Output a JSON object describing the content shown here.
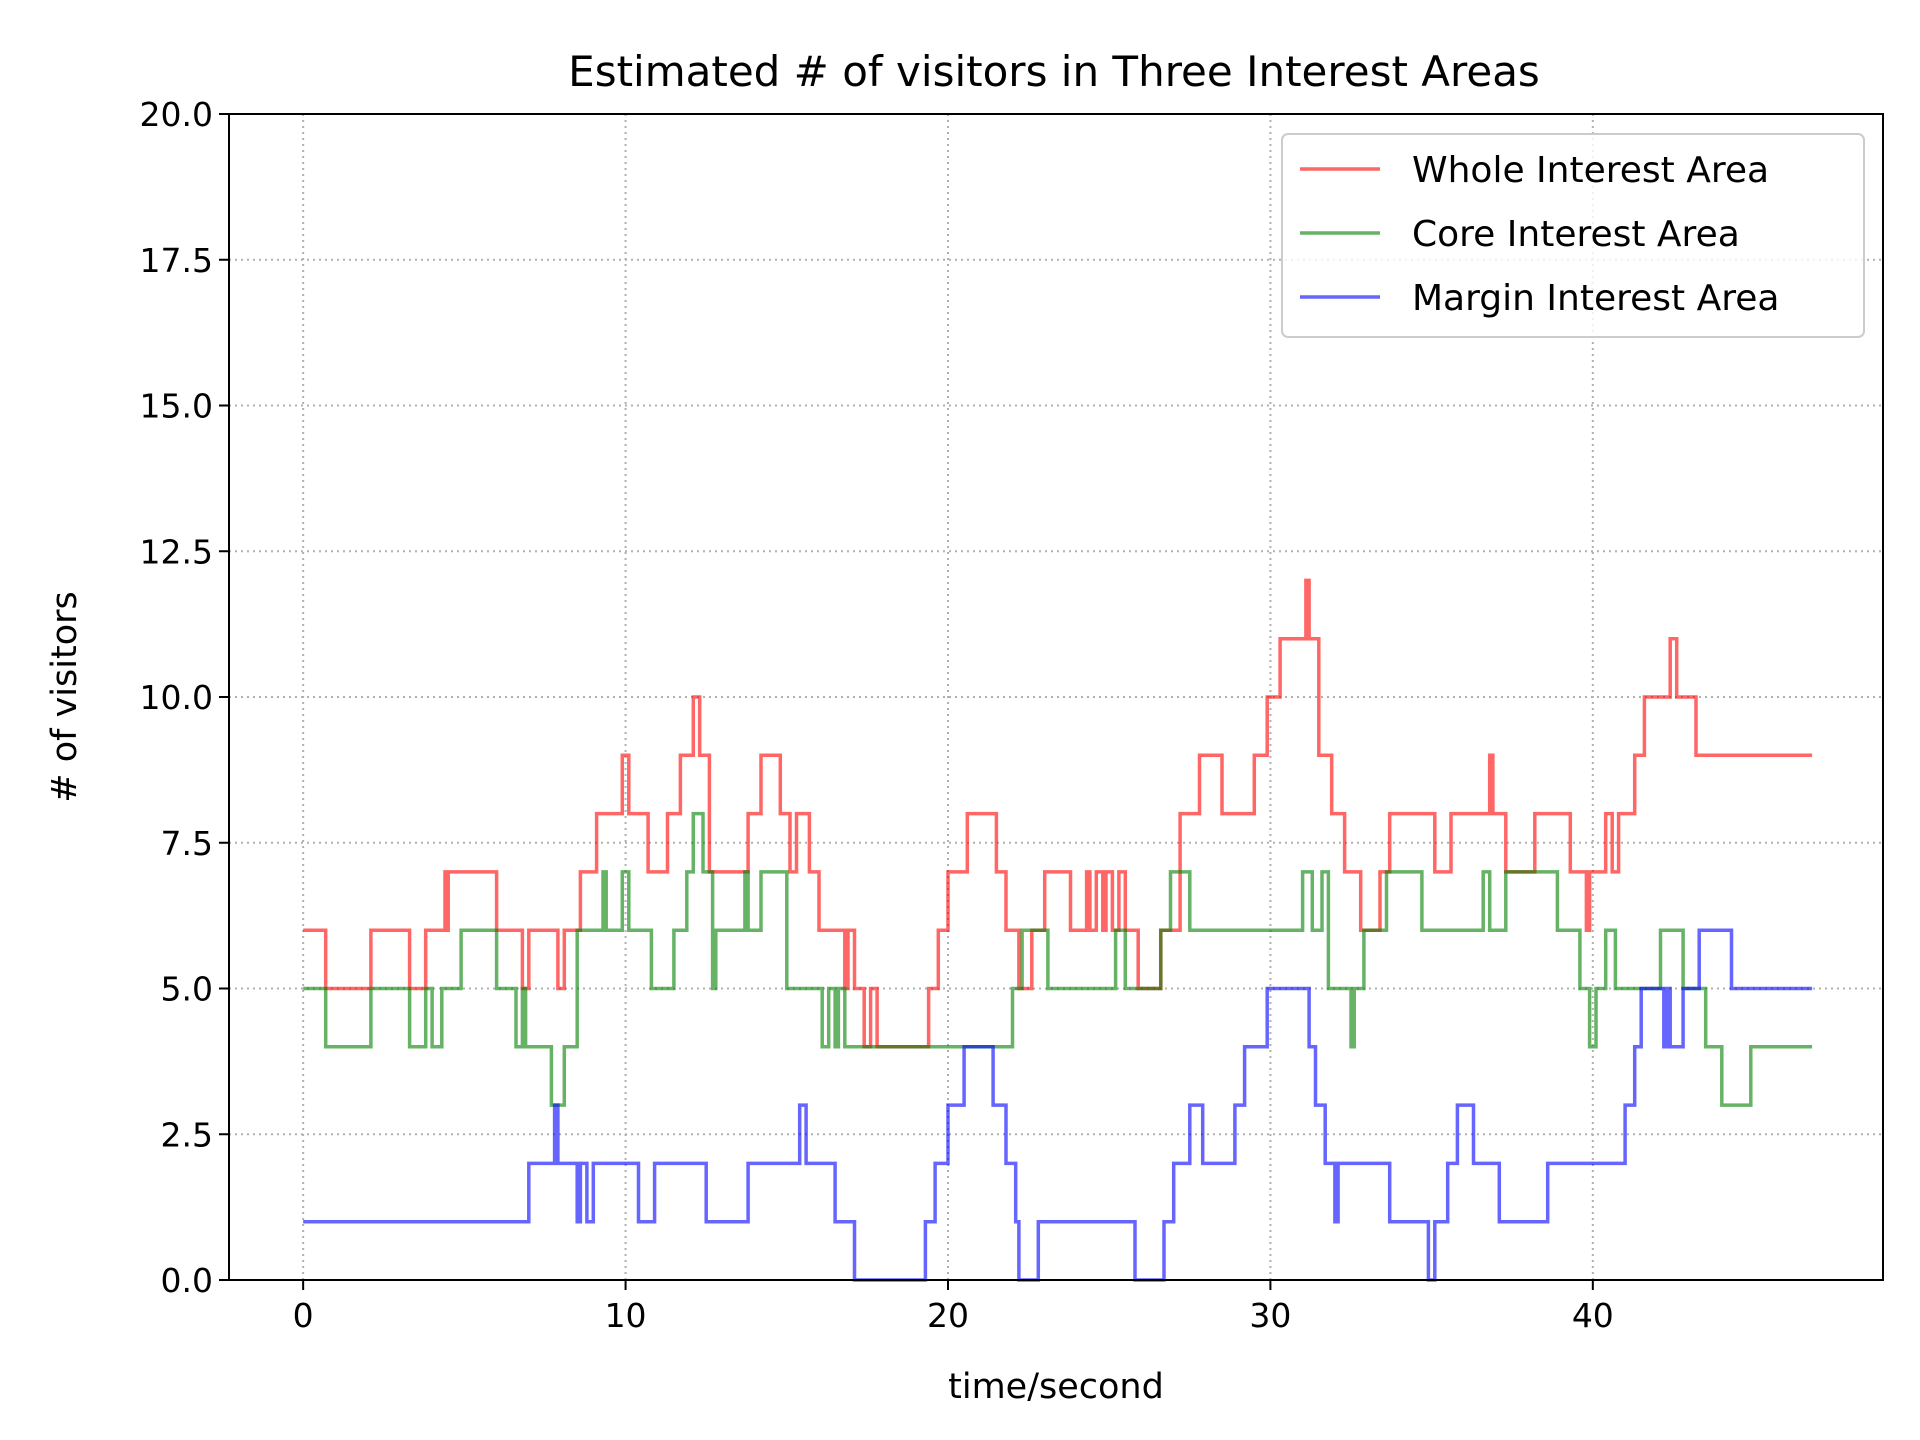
{
  "chart_data": {
    "type": "line",
    "title": "Estimated # of visitors in Three Interest Areas",
    "xlabel": "time/second",
    "ylabel": "# of visitors",
    "xlim": [
      -2.3,
      49.0
    ],
    "ylim": [
      0,
      20
    ],
    "x_ticks": [
      0,
      10,
      20,
      30,
      40
    ],
    "x_tick_labels": [
      "0",
      "10",
      "20",
      "30",
      "40"
    ],
    "y_ticks": [
      0,
      2.5,
      5,
      7.5,
      10,
      12.5,
      15,
      17.5,
      20
    ],
    "y_tick_labels": [
      "0.0",
      "2.5",
      "5.0",
      "7.5",
      "10.0",
      "12.5",
      "15.0",
      "17.5",
      "20.0"
    ],
    "grid": true,
    "legend_position": "top-right",
    "step": true,
    "series": [
      {
        "name": "Whole Interest Area",
        "color": "#ff0000",
        "points": [
          [
            0,
            6
          ],
          [
            0.7,
            5
          ],
          [
            2.1,
            6
          ],
          [
            3.3,
            5
          ],
          [
            3.8,
            6
          ],
          [
            4.4,
            7
          ],
          [
            4.45,
            6
          ],
          [
            4.5,
            7
          ],
          [
            6.0,
            6
          ],
          [
            6.8,
            5
          ],
          [
            7.0,
            6
          ],
          [
            7.9,
            5
          ],
          [
            8.1,
            6
          ],
          [
            8.6,
            7
          ],
          [
            9.1,
            8
          ],
          [
            9.9,
            9
          ],
          [
            10.1,
            8
          ],
          [
            10.7,
            7
          ],
          [
            11.3,
            8
          ],
          [
            11.7,
            9
          ],
          [
            12.1,
            10
          ],
          [
            12.3,
            9
          ],
          [
            12.6,
            7
          ],
          [
            13.1,
            7
          ],
          [
            13.8,
            8
          ],
          [
            14.2,
            9
          ],
          [
            14.8,
            8
          ],
          [
            15.1,
            7
          ],
          [
            15.3,
            8
          ],
          [
            15.7,
            7
          ],
          [
            16.0,
            6
          ],
          [
            16.8,
            5
          ],
          [
            16.9,
            6
          ],
          [
            17.1,
            5
          ],
          [
            17.4,
            4
          ],
          [
            17.6,
            5
          ],
          [
            17.8,
            4
          ],
          [
            19.4,
            5
          ],
          [
            19.7,
            6
          ],
          [
            20.0,
            7
          ],
          [
            20.6,
            8
          ],
          [
            21.5,
            7
          ],
          [
            21.8,
            6
          ],
          [
            22.2,
            5
          ],
          [
            22.6,
            6
          ],
          [
            23.0,
            7
          ],
          [
            23.8,
            6
          ],
          [
            24.3,
            7
          ],
          [
            24.4,
            6
          ],
          [
            24.6,
            7
          ],
          [
            24.8,
            6
          ],
          [
            24.9,
            7
          ],
          [
            25.1,
            6
          ],
          [
            25.3,
            7
          ],
          [
            25.5,
            6
          ],
          [
            25.9,
            5
          ],
          [
            26.6,
            6
          ],
          [
            27.2,
            8
          ],
          [
            27.8,
            9
          ],
          [
            28.5,
            8
          ],
          [
            29.5,
            9
          ],
          [
            29.9,
            10
          ],
          [
            30.3,
            11
          ],
          [
            31.1,
            12
          ],
          [
            31.2,
            11
          ],
          [
            31.5,
            9
          ],
          [
            31.9,
            8
          ],
          [
            32.3,
            7
          ],
          [
            32.8,
            6
          ],
          [
            33.4,
            7
          ],
          [
            33.7,
            8
          ],
          [
            35.1,
            7
          ],
          [
            35.6,
            8
          ],
          [
            36.8,
            9
          ],
          [
            36.9,
            8
          ],
          [
            37.3,
            7
          ],
          [
            38.2,
            8
          ],
          [
            38.8,
            8
          ],
          [
            39.3,
            7
          ],
          [
            39.8,
            6
          ],
          [
            39.9,
            7
          ],
          [
            40.4,
            8
          ],
          [
            40.6,
            7
          ],
          [
            40.8,
            8
          ],
          [
            41.3,
            9
          ],
          [
            41.6,
            10
          ],
          [
            42.4,
            11
          ],
          [
            42.6,
            10
          ],
          [
            43.2,
            9
          ],
          [
            46.8,
            9
          ]
        ]
      },
      {
        "name": "Core Interest Area",
        "color": "#008000",
        "points": [
          [
            0,
            5
          ],
          [
            0.7,
            4
          ],
          [
            2.1,
            5
          ],
          [
            3.3,
            4
          ],
          [
            3.8,
            5
          ],
          [
            4.0,
            4
          ],
          [
            4.3,
            5
          ],
          [
            4.9,
            6
          ],
          [
            6.0,
            5
          ],
          [
            6.6,
            4
          ],
          [
            6.8,
            5
          ],
          [
            6.9,
            4
          ],
          [
            7.7,
            3
          ],
          [
            8.1,
            4
          ],
          [
            8.5,
            6
          ],
          [
            9.3,
            7
          ],
          [
            9.4,
            6
          ],
          [
            9.9,
            7
          ],
          [
            10.1,
            6
          ],
          [
            10.8,
            5
          ],
          [
            11.5,
            6
          ],
          [
            11.9,
            7
          ],
          [
            12.1,
            8
          ],
          [
            12.4,
            7
          ],
          [
            12.7,
            5
          ],
          [
            12.8,
            6
          ],
          [
            13.7,
            7
          ],
          [
            13.8,
            6
          ],
          [
            14.2,
            7
          ],
          [
            15.0,
            5
          ],
          [
            16.1,
            4
          ],
          [
            16.3,
            5
          ],
          [
            16.5,
            4
          ],
          [
            16.6,
            5
          ],
          [
            16.8,
            4
          ],
          [
            19.2,
            4
          ],
          [
            22.0,
            5
          ],
          [
            22.3,
            6
          ],
          [
            23.1,
            5
          ],
          [
            25.2,
            6
          ],
          [
            25.5,
            5
          ],
          [
            26.6,
            6
          ],
          [
            26.9,
            7
          ],
          [
            27.5,
            6
          ],
          [
            31.0,
            7
          ],
          [
            31.3,
            6
          ],
          [
            31.6,
            7
          ],
          [
            31.8,
            5
          ],
          [
            32.5,
            4
          ],
          [
            32.6,
            5
          ],
          [
            32.9,
            6
          ],
          [
            33.6,
            7
          ],
          [
            34.7,
            6
          ],
          [
            36.6,
            7
          ],
          [
            36.8,
            6
          ],
          [
            37.3,
            7
          ],
          [
            38.9,
            6
          ],
          [
            39.6,
            5
          ],
          [
            39.9,
            4
          ],
          [
            40.1,
            5
          ],
          [
            40.4,
            6
          ],
          [
            40.7,
            5
          ],
          [
            42.1,
            6
          ],
          [
            42.8,
            5
          ],
          [
            43.5,
            4
          ],
          [
            44.0,
            3
          ],
          [
            44.9,
            4
          ],
          [
            46.8,
            4
          ]
        ]
      },
      {
        "name": "Margin Interest Area",
        "color": "#0000ff",
        "points": [
          [
            0,
            1
          ],
          [
            7.0,
            2
          ],
          [
            7.8,
            3
          ],
          [
            7.9,
            2
          ],
          [
            8.3,
            2
          ],
          [
            8.5,
            1
          ],
          [
            8.6,
            2
          ],
          [
            8.8,
            1
          ],
          [
            9.0,
            2
          ],
          [
            10.4,
            1
          ],
          [
            10.9,
            2
          ],
          [
            12.5,
            1
          ],
          [
            13.8,
            2
          ],
          [
            15.4,
            3
          ],
          [
            15.6,
            2
          ],
          [
            16.5,
            1
          ],
          [
            17.1,
            0
          ],
          [
            19.3,
            1
          ],
          [
            19.6,
            2
          ],
          [
            20.0,
            3
          ],
          [
            20.5,
            4
          ],
          [
            21.4,
            3
          ],
          [
            21.8,
            2
          ],
          [
            22.1,
            1
          ],
          [
            22.2,
            0
          ],
          [
            22.8,
            1
          ],
          [
            25.8,
            0
          ],
          [
            26.7,
            1
          ],
          [
            27.0,
            2
          ],
          [
            27.5,
            3
          ],
          [
            27.9,
            2
          ],
          [
            28.9,
            3
          ],
          [
            29.2,
            4
          ],
          [
            29.9,
            5
          ],
          [
            31.2,
            4
          ],
          [
            31.4,
            3
          ],
          [
            31.7,
            2
          ],
          [
            32.0,
            1
          ],
          [
            32.1,
            2
          ],
          [
            33.7,
            1
          ],
          [
            34.9,
            0
          ],
          [
            35.1,
            1
          ],
          [
            35.5,
            2
          ],
          [
            35.8,
            3
          ],
          [
            36.3,
            2
          ],
          [
            37.1,
            1
          ],
          [
            38.6,
            2
          ],
          [
            41.0,
            3
          ],
          [
            41.3,
            4
          ],
          [
            41.5,
            5
          ],
          [
            42.2,
            4
          ],
          [
            42.3,
            5
          ],
          [
            42.4,
            4
          ],
          [
            42.8,
            5
          ],
          [
            43.3,
            6
          ],
          [
            44.3,
            5
          ],
          [
            46.8,
            5
          ]
        ]
      }
    ]
  }
}
